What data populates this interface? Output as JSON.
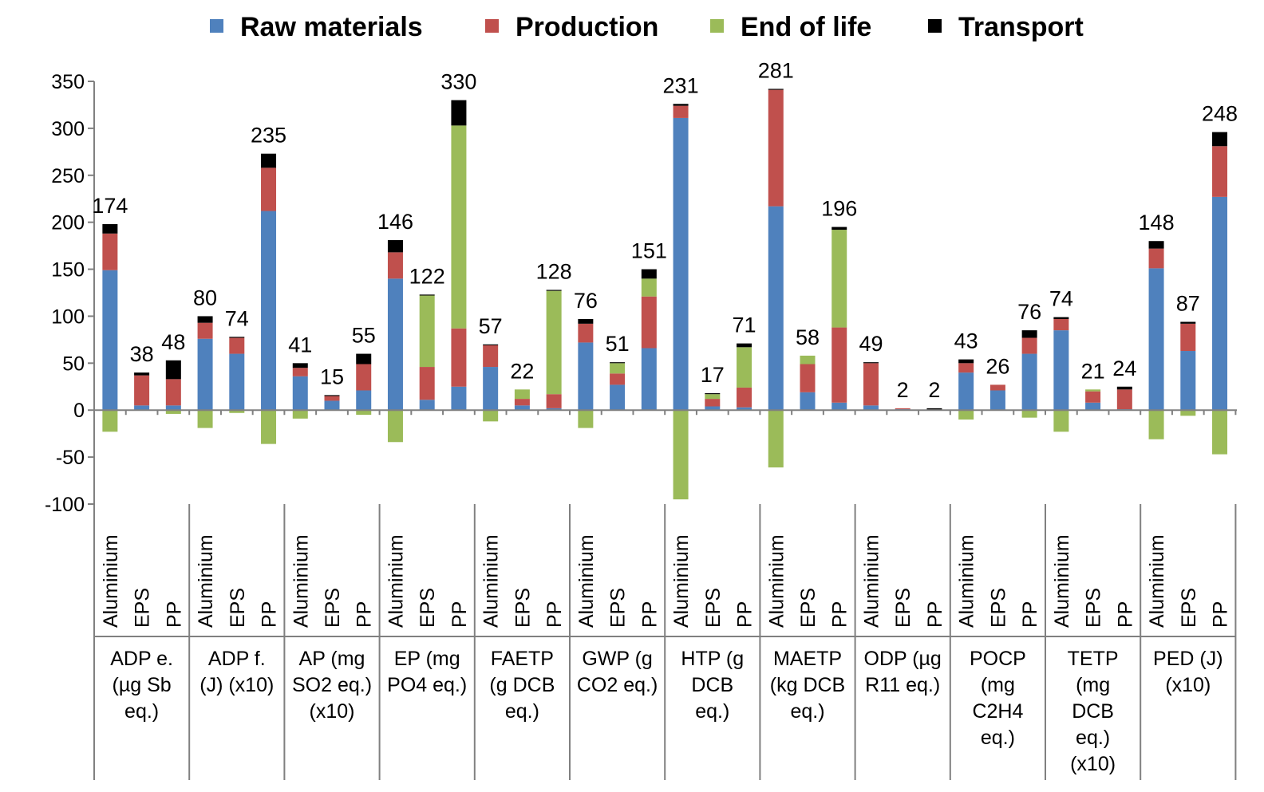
{
  "chart_data": {
    "type": "bar",
    "stacked": true,
    "ylim": [
      -100,
      350
    ],
    "yticks": [
      -100,
      -50,
      0,
      50,
      100,
      150,
      200,
      250,
      300,
      350
    ],
    "grid": false,
    "legend_position": "top",
    "series": [
      {
        "name": "Raw materials",
        "color": "#4F81BD"
      },
      {
        "name": "Production",
        "color": "#C0504D"
      },
      {
        "name": "End of life",
        "color": "#9BBB59"
      },
      {
        "name": "Transport",
        "color": "#000000"
      }
    ],
    "groups": [
      {
        "label": [
          "ADP e.",
          "(µg Sb",
          "eq.)"
        ],
        "bars": [
          {
            "category": "Aluminium",
            "total": "174",
            "values": {
              "raw": 149,
              "prod": 39,
              "eol": 0,
              "trans": 10,
              "eol_neg": -23
            }
          },
          {
            "category": "EPS",
            "total": "38",
            "values": {
              "raw": 5,
              "prod": 32,
              "eol": 0,
              "trans": 3,
              "eol_neg": 0
            }
          },
          {
            "category": "PP",
            "total": "48",
            "values": {
              "raw": 5,
              "prod": 28,
              "eol": 0,
              "trans": 20,
              "eol_neg": -4
            }
          }
        ]
      },
      {
        "label": [
          "ADP f.",
          "(J) (x10)"
        ],
        "bars": [
          {
            "category": "Aluminium",
            "total": "80",
            "values": {
              "raw": 76,
              "prod": 17,
              "eol": 0,
              "trans": 7,
              "eol_neg": -19
            }
          },
          {
            "category": "EPS",
            "total": "74",
            "values": {
              "raw": 60,
              "prod": 17,
              "eol": 0,
              "trans": 1,
              "eol_neg": -3
            }
          },
          {
            "category": "PP",
            "total": "235",
            "values": {
              "raw": 212,
              "prod": 46,
              "eol": 0,
              "trans": 15,
              "eol_neg": -36
            }
          }
        ]
      },
      {
        "label": [
          "AP (mg",
          "SO2 eq.)",
          "(x10)"
        ],
        "bars": [
          {
            "category": "Aluminium",
            "total": "41",
            "values": {
              "raw": 36,
              "prod": 9,
              "eol": 0,
              "trans": 5,
              "eol_neg": -9
            }
          },
          {
            "category": "EPS",
            "total": "15",
            "values": {
              "raw": 10,
              "prod": 5,
              "eol": 0,
              "trans": 1,
              "eol_neg": 0
            }
          },
          {
            "category": "PP",
            "total": "55",
            "values": {
              "raw": 21,
              "prod": 28,
              "eol": 0,
              "trans": 11,
              "eol_neg": -5
            }
          }
        ]
      },
      {
        "label": [
          "EP (mg",
          "PO4 eq.)"
        ],
        "bars": [
          {
            "category": "Aluminium",
            "total": "146",
            "values": {
              "raw": 140,
              "prod": 28,
              "eol": 0,
              "trans": 13,
              "eol_neg": -34
            }
          },
          {
            "category": "EPS",
            "total": "122",
            "values": {
              "raw": 11,
              "prod": 35,
              "eol": 76,
              "trans": 1,
              "eol_neg": 0
            }
          },
          {
            "category": "PP",
            "total": "330",
            "values": {
              "raw": 25,
              "prod": 62,
              "eol": 216,
              "trans": 27,
              "eol_neg": 0
            }
          }
        ]
      },
      {
        "label": [
          "FAETP",
          "(g DCB",
          "eq.)"
        ],
        "bars": [
          {
            "category": "Aluminium",
            "total": "57",
            "values": {
              "raw": 46,
              "prod": 23,
              "eol": 0,
              "trans": 1,
              "eol_neg": -12
            }
          },
          {
            "category": "EPS",
            "total": "22",
            "values": {
              "raw": 5,
              "prod": 7,
              "eol": 10,
              "trans": 0,
              "eol_neg": 0
            }
          },
          {
            "category": "PP",
            "total": "128",
            "values": {
              "raw": 2,
              "prod": 15,
              "eol": 110,
              "trans": 1,
              "eol_neg": 0
            }
          }
        ]
      },
      {
        "label": [
          "GWP (g",
          "CO2 eq.)"
        ],
        "bars": [
          {
            "category": "Aluminium",
            "total": "76",
            "values": {
              "raw": 72,
              "prod": 20,
              "eol": 0,
              "trans": 5,
              "eol_neg": -19
            }
          },
          {
            "category": "EPS",
            "total": "51",
            "values": {
              "raw": 27,
              "prod": 12,
              "eol": 11,
              "trans": 1,
              "eol_neg": 0
            }
          },
          {
            "category": "PP",
            "total": "151",
            "values": {
              "raw": 66,
              "prod": 55,
              "eol": 19,
              "trans": 10,
              "eol_neg": 0
            }
          }
        ]
      },
      {
        "label": [
          "HTP (g",
          "DCB",
          "eq.)"
        ],
        "bars": [
          {
            "category": "Aluminium",
            "total": "231",
            "values": {
              "raw": 311,
              "prod": 13,
              "eol": 0,
              "trans": 2,
              "eol_neg": -95
            }
          },
          {
            "category": "EPS",
            "total": "17",
            "values": {
              "raw": 4,
              "prod": 8,
              "eol": 5,
              "trans": 1,
              "eol_neg": 0
            }
          },
          {
            "category": "PP",
            "total": "71",
            "values": {
              "raw": 3,
              "prod": 21,
              "eol": 43,
              "trans": 4,
              "eol_neg": 0
            }
          }
        ]
      },
      {
        "label": [
          "MAETP",
          "(kg DCB",
          "eq.)"
        ],
        "bars": [
          {
            "category": "Aluminium",
            "total": "281",
            "values": {
              "raw": 217,
              "prod": 124,
              "eol": 0,
              "trans": 1,
              "eol_neg": -61
            }
          },
          {
            "category": "EPS",
            "total": "58",
            "values": {
              "raw": 19,
              "prod": 30,
              "eol": 9,
              "trans": 0,
              "eol_neg": 0
            }
          },
          {
            "category": "PP",
            "total": "196",
            "values": {
              "raw": 8,
              "prod": 80,
              "eol": 104,
              "trans": 3,
              "eol_neg": 0
            }
          }
        ]
      },
      {
        "label": [
          "ODP (µg",
          "R11 eq.)"
        ],
        "bars": [
          {
            "category": "Aluminium",
            "total": "49",
            "values": {
              "raw": 5,
              "prod": 45,
              "eol": 0,
              "trans": 1,
              "eol_neg": 0
            }
          },
          {
            "category": "EPS",
            "total": "2",
            "values": {
              "raw": 1,
              "prod": 1,
              "eol": 0,
              "trans": 0,
              "eol_neg": 0
            }
          },
          {
            "category": "PP",
            "total": "2",
            "values": {
              "raw": 0,
              "prod": 0,
              "eol": 0,
              "trans": 2,
              "eol_neg": 0
            }
          }
        ]
      },
      {
        "label": [
          "POCP",
          "(mg",
          "C2H4",
          "eq.)"
        ],
        "bars": [
          {
            "category": "Aluminium",
            "total": "43",
            "values": {
              "raw": 40,
              "prod": 10,
              "eol": 0,
              "trans": 4,
              "eol_neg": -10
            }
          },
          {
            "category": "EPS",
            "total": "26",
            "values": {
              "raw": 21,
              "prod": 6,
              "eol": 0,
              "trans": 0,
              "eol_neg": 0
            }
          },
          {
            "category": "PP",
            "total": "76",
            "values": {
              "raw": 60,
              "prod": 17,
              "eol": 0,
              "trans": 8,
              "eol_neg": -8
            }
          }
        ]
      },
      {
        "label": [
          "TETP",
          "(mg",
          "DCB",
          "eq.)",
          "(x10)"
        ],
        "bars": [
          {
            "category": "Aluminium",
            "total": "74",
            "values": {
              "raw": 85,
              "prod": 12,
              "eol": 0,
              "trans": 2,
              "eol_neg": -23
            }
          },
          {
            "category": "EPS",
            "total": "21",
            "values": {
              "raw": 8,
              "prod": 12,
              "eol": 2,
              "trans": 0,
              "eol_neg": 0
            }
          },
          {
            "category": "PP",
            "total": "24",
            "values": {
              "raw": 1,
              "prod": 21,
              "eol": 0,
              "trans": 3,
              "eol_neg": 0
            }
          }
        ]
      },
      {
        "label": [
          "PED (J)",
          "(x10)"
        ],
        "bars": [
          {
            "category": "Aluminium",
            "total": "148",
            "values": {
              "raw": 151,
              "prod": 21,
              "eol": 0,
              "trans": 8,
              "eol_neg": -31
            }
          },
          {
            "category": "EPS",
            "total": "87",
            "values": {
              "raw": 63,
              "prod": 29,
              "eol": 0,
              "trans": 2,
              "eol_neg": -6
            }
          },
          {
            "category": "PP",
            "total": "248",
            "values": {
              "raw": 227,
              "prod": 54,
              "eol": 0,
              "trans": 15,
              "eol_neg": -47
            }
          }
        ]
      }
    ]
  }
}
